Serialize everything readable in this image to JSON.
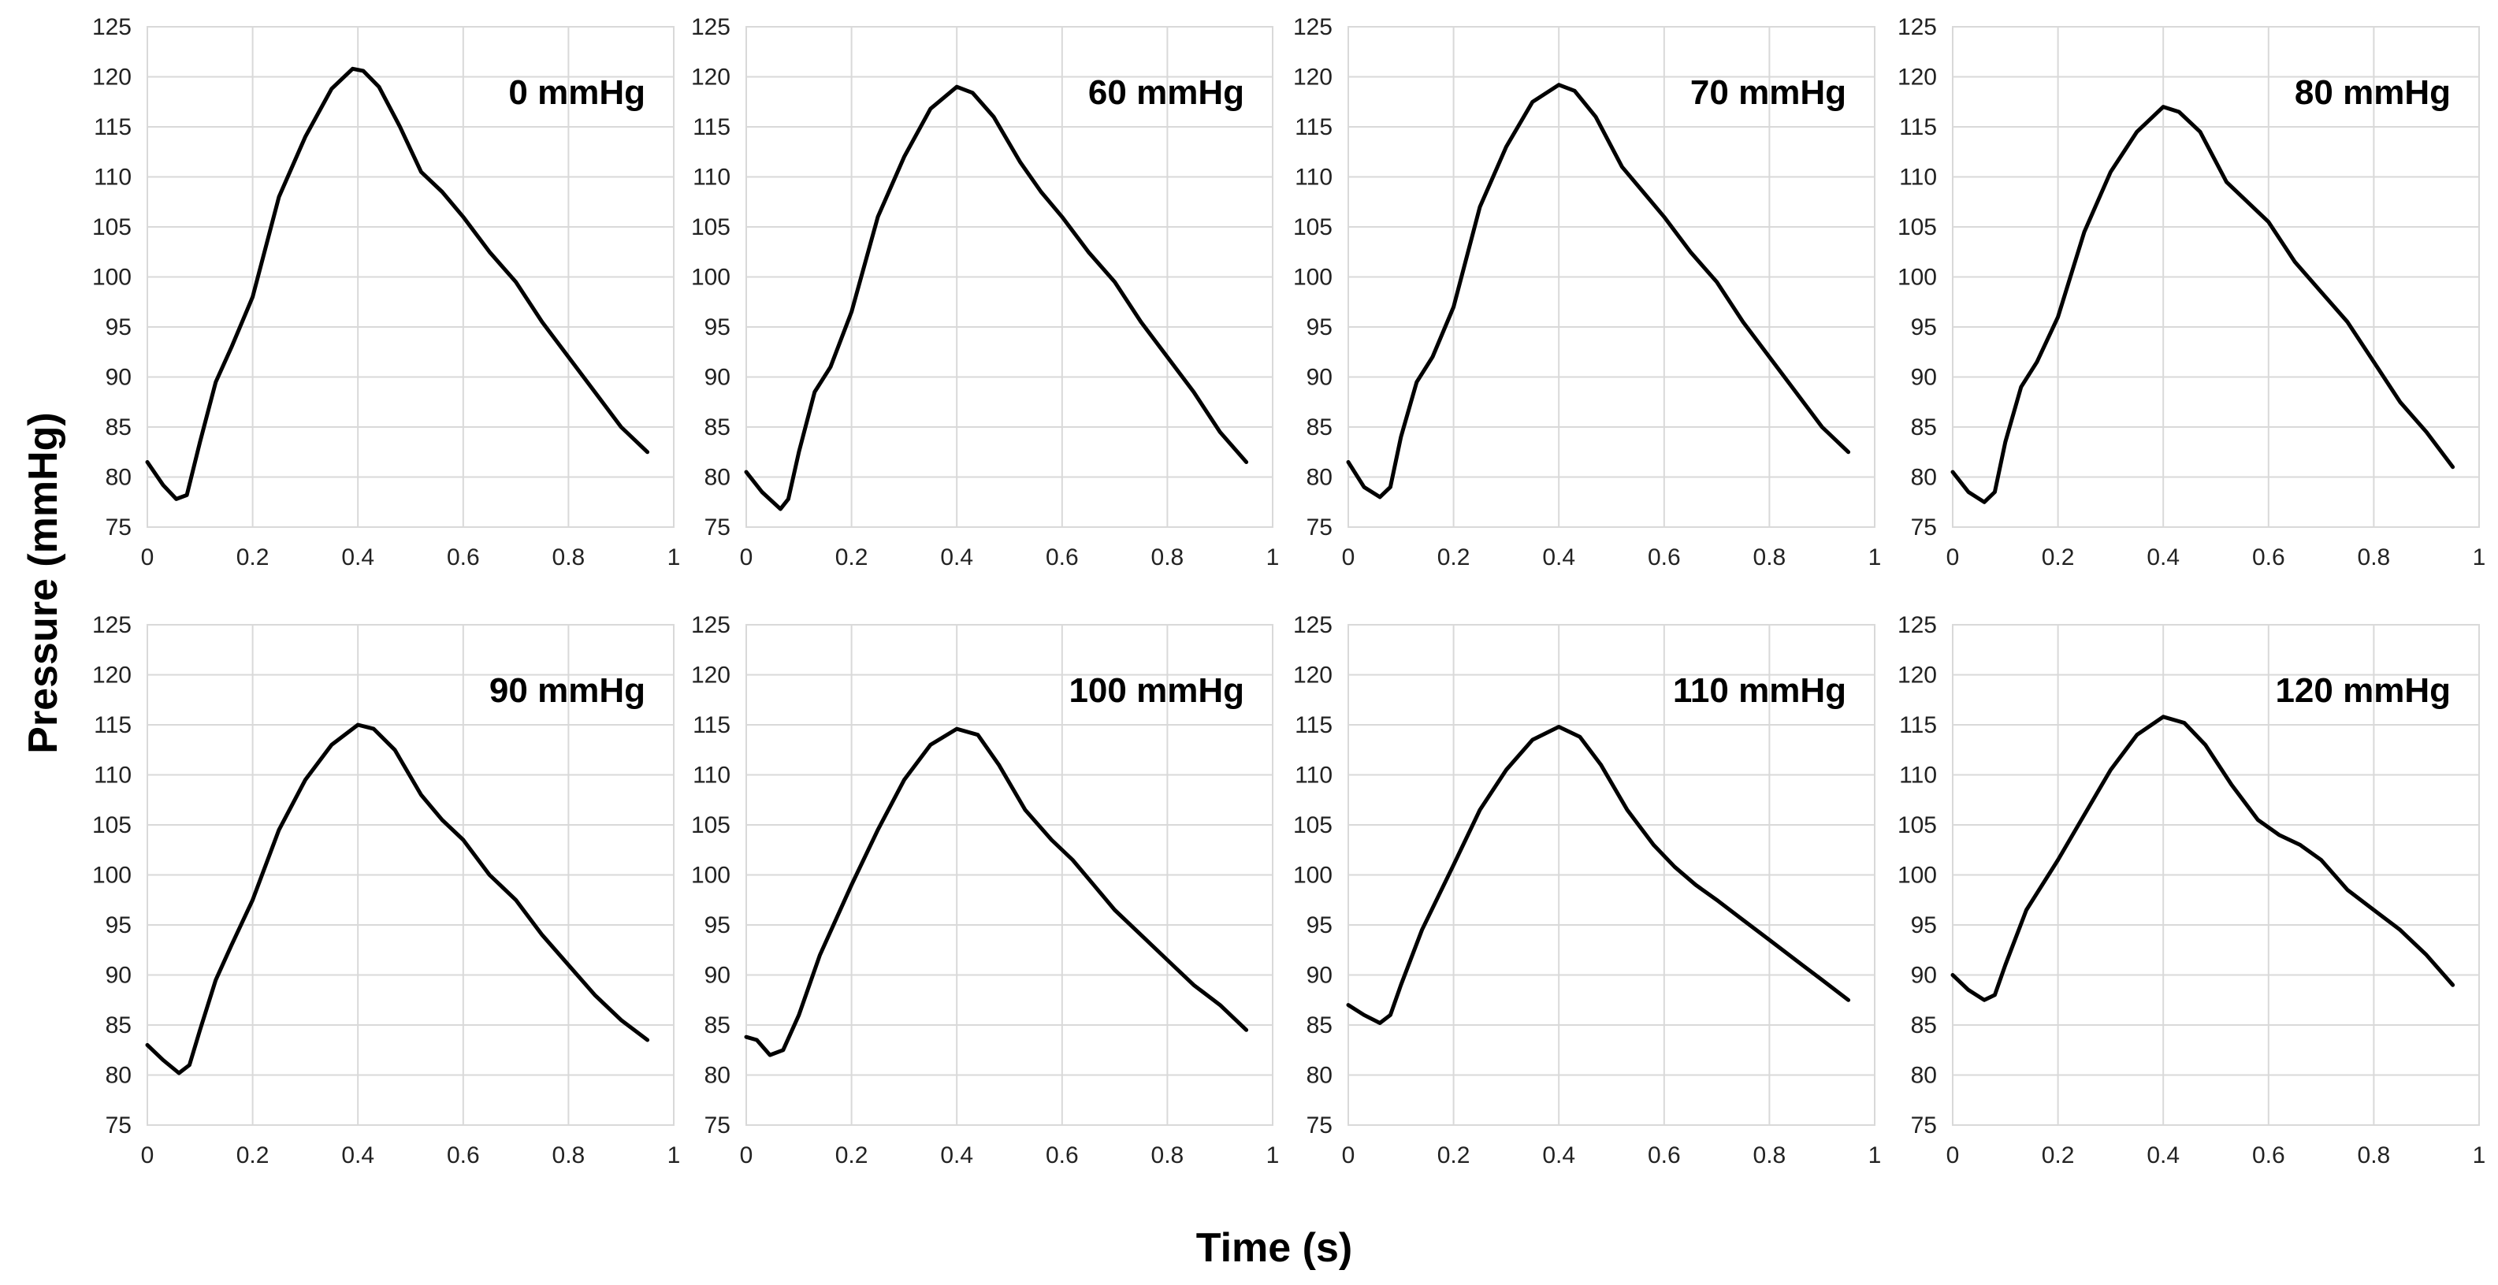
{
  "figure": {
    "ylabel": "Pressure (mmHg)",
    "xlabel": "Time (s)"
  },
  "chart_data": [
    {
      "type": "line",
      "title": "0 mmHg",
      "xlim": [
        0,
        1
      ],
      "ylim": [
        75,
        125
      ],
      "xticks": [
        "0",
        "0.2",
        "0.4",
        "0.6",
        "0.8",
        "1"
      ],
      "yticks": [
        "75",
        "80",
        "85",
        "90",
        "95",
        "100",
        "105",
        "110",
        "115",
        "120",
        "125"
      ],
      "series": [
        {
          "name": "0 mmHg",
          "x": [
            0,
            0.03,
            0.055,
            0.075,
            0.1,
            0.13,
            0.16,
            0.2,
            0.25,
            0.3,
            0.35,
            0.39,
            0.41,
            0.44,
            0.48,
            0.52,
            0.56,
            0.6,
            0.65,
            0.7,
            0.75,
            0.8,
            0.85,
            0.9,
            0.95
          ],
          "y": [
            81.5,
            79.2,
            77.8,
            78.2,
            83.5,
            89.5,
            93,
            98,
            108,
            114,
            118.8,
            120.8,
            120.6,
            119,
            115,
            110.5,
            108.5,
            106,
            102.5,
            99.5,
            95.5,
            92,
            88.5,
            85,
            82.5
          ]
        }
      ]
    },
    {
      "type": "line",
      "title": "60 mmHg",
      "xlim": [
        0,
        1
      ],
      "ylim": [
        75,
        125
      ],
      "xticks": [
        "0",
        "0.2",
        "0.4",
        "0.6",
        "0.8",
        "1"
      ],
      "yticks": [
        "75",
        "80",
        "85",
        "90",
        "95",
        "100",
        "105",
        "110",
        "115",
        "120",
        "125"
      ],
      "series": [
        {
          "name": "60 mmHg",
          "x": [
            0,
            0.03,
            0.065,
            0.08,
            0.1,
            0.13,
            0.16,
            0.2,
            0.25,
            0.3,
            0.35,
            0.4,
            0.43,
            0.47,
            0.52,
            0.56,
            0.6,
            0.65,
            0.7,
            0.75,
            0.8,
            0.85,
            0.9,
            0.95
          ],
          "y": [
            80.5,
            78.5,
            76.8,
            77.8,
            82.5,
            88.5,
            91,
            96.5,
            106,
            112,
            116.8,
            119,
            118.4,
            116,
            111.5,
            108.5,
            106,
            102.5,
            99.5,
            95.5,
            92,
            88.5,
            84.5,
            81.5
          ]
        }
      ]
    },
    {
      "type": "line",
      "title": "70 mmHg",
      "xlim": [
        0,
        1
      ],
      "ylim": [
        75,
        125
      ],
      "xticks": [
        "0",
        "0.2",
        "0.4",
        "0.6",
        "0.8",
        "1"
      ],
      "yticks": [
        "75",
        "80",
        "85",
        "90",
        "95",
        "100",
        "105",
        "110",
        "115",
        "120",
        "125"
      ],
      "series": [
        {
          "name": "70 mmHg",
          "x": [
            0,
            0.03,
            0.06,
            0.08,
            0.1,
            0.13,
            0.16,
            0.2,
            0.25,
            0.3,
            0.35,
            0.4,
            0.43,
            0.47,
            0.52,
            0.56,
            0.6,
            0.65,
            0.7,
            0.75,
            0.8,
            0.85,
            0.9,
            0.95
          ],
          "y": [
            81.5,
            79,
            78,
            79,
            84,
            89.5,
            92,
            97,
            107,
            113,
            117.5,
            119.2,
            118.6,
            116,
            111,
            108.5,
            106,
            102.5,
            99.5,
            95.5,
            92,
            88.5,
            85,
            82.5
          ]
        }
      ]
    },
    {
      "type": "line",
      "title": "80 mmHg",
      "xlim": [
        0,
        1
      ],
      "ylim": [
        75,
        125
      ],
      "xticks": [
        "0",
        "0.2",
        "0.4",
        "0.6",
        "0.8",
        "1"
      ],
      "yticks": [
        "75",
        "80",
        "85",
        "90",
        "95",
        "100",
        "105",
        "110",
        "115",
        "120",
        "125"
      ],
      "series": [
        {
          "name": "80 mmHg",
          "x": [
            0,
            0.03,
            0.06,
            0.08,
            0.1,
            0.13,
            0.16,
            0.2,
            0.25,
            0.3,
            0.35,
            0.4,
            0.43,
            0.47,
            0.52,
            0.56,
            0.6,
            0.65,
            0.7,
            0.75,
            0.8,
            0.85,
            0.9,
            0.95
          ],
          "y": [
            80.5,
            78.5,
            77.5,
            78.5,
            83.5,
            89,
            91.5,
            96,
            104.5,
            110.5,
            114.5,
            117,
            116.5,
            114.5,
            109.5,
            107.5,
            105.5,
            101.5,
            98.5,
            95.5,
            91.5,
            87.5,
            84.5,
            81
          ]
        }
      ]
    },
    {
      "type": "line",
      "title": "90 mmHg",
      "xlim": [
        0,
        1
      ],
      "ylim": [
        75,
        125
      ],
      "xticks": [
        "0",
        "0.2",
        "0.4",
        "0.6",
        "0.8",
        "1"
      ],
      "yticks": [
        "75",
        "80",
        "85",
        "90",
        "95",
        "100",
        "105",
        "110",
        "115",
        "120",
        "125"
      ],
      "series": [
        {
          "name": "90 mmHg",
          "x": [
            0,
            0.03,
            0.06,
            0.08,
            0.1,
            0.13,
            0.16,
            0.2,
            0.25,
            0.3,
            0.35,
            0.4,
            0.43,
            0.47,
            0.52,
            0.56,
            0.6,
            0.65,
            0.7,
            0.75,
            0.8,
            0.85,
            0.9,
            0.95
          ],
          "y": [
            83,
            81.5,
            80.2,
            81,
            84.5,
            89.5,
            93,
            97.5,
            104.5,
            109.5,
            113,
            115,
            114.6,
            112.5,
            108,
            105.5,
            103.5,
            100,
            97.5,
            94,
            91,
            88,
            85.5,
            83.5
          ]
        }
      ]
    },
    {
      "type": "line",
      "title": "100 mmHg",
      "xlim": [
        0,
        1
      ],
      "ylim": [
        75,
        125
      ],
      "xticks": [
        "0",
        "0.2",
        "0.4",
        "0.6",
        "0.8",
        "1"
      ],
      "yticks": [
        "75",
        "80",
        "85",
        "90",
        "95",
        "100",
        "105",
        "110",
        "115",
        "120",
        "125"
      ],
      "series": [
        {
          "name": "100 mmHg",
          "x": [
            0,
            0.02,
            0.045,
            0.07,
            0.1,
            0.14,
            0.2,
            0.25,
            0.3,
            0.35,
            0.4,
            0.44,
            0.48,
            0.53,
            0.58,
            0.62,
            0.66,
            0.7,
            0.75,
            0.8,
            0.85,
            0.9,
            0.95
          ],
          "y": [
            83.8,
            83.5,
            82,
            82.5,
            86,
            92,
            99,
            104.5,
            109.5,
            113,
            114.6,
            114,
            111,
            106.5,
            103.5,
            101.5,
            99,
            96.5,
            94,
            91.5,
            89,
            87,
            84.5
          ]
        }
      ]
    },
    {
      "type": "line",
      "title": "110 mmHg",
      "xlim": [
        0,
        1
      ],
      "ylim": [
        75,
        125
      ],
      "xticks": [
        "0",
        "0.2",
        "0.4",
        "0.6",
        "0.8",
        "1"
      ],
      "yticks": [
        "75",
        "80",
        "85",
        "90",
        "95",
        "100",
        "105",
        "110",
        "115",
        "120",
        "125"
      ],
      "series": [
        {
          "name": "110 mmHg",
          "x": [
            0,
            0.03,
            0.06,
            0.08,
            0.1,
            0.14,
            0.2,
            0.25,
            0.3,
            0.35,
            0.4,
            0.44,
            0.48,
            0.53,
            0.58,
            0.62,
            0.66,
            0.7,
            0.75,
            0.8,
            0.85,
            0.9,
            0.95
          ],
          "y": [
            87,
            86,
            85.2,
            86,
            89,
            94.5,
            101,
            106.5,
            110.5,
            113.5,
            114.8,
            113.8,
            111,
            106.5,
            103,
            100.8,
            99,
            97.5,
            95.5,
            93.5,
            91.5,
            89.5,
            87.5
          ]
        }
      ]
    },
    {
      "type": "line",
      "title": "120 mmHg",
      "xlim": [
        0,
        1
      ],
      "ylim": [
        75,
        125
      ],
      "xticks": [
        "0",
        "0.2",
        "0.4",
        "0.6",
        "0.8",
        "1"
      ],
      "yticks": [
        "75",
        "80",
        "85",
        "90",
        "95",
        "100",
        "105",
        "110",
        "115",
        "120",
        "125"
      ],
      "series": [
        {
          "name": "120 mmHg",
          "x": [
            0,
            0.03,
            0.06,
            0.08,
            0.1,
            0.14,
            0.2,
            0.25,
            0.3,
            0.35,
            0.4,
            0.44,
            0.48,
            0.53,
            0.58,
            0.62,
            0.66,
            0.7,
            0.75,
            0.8,
            0.85,
            0.9,
            0.95
          ],
          "y": [
            90,
            88.5,
            87.5,
            88,
            91,
            96.5,
            101.5,
            106,
            110.5,
            114,
            115.8,
            115.2,
            113,
            109,
            105.5,
            104,
            103,
            101.5,
            98.5,
            96.5,
            94.5,
            92,
            89
          ]
        }
      ]
    }
  ]
}
